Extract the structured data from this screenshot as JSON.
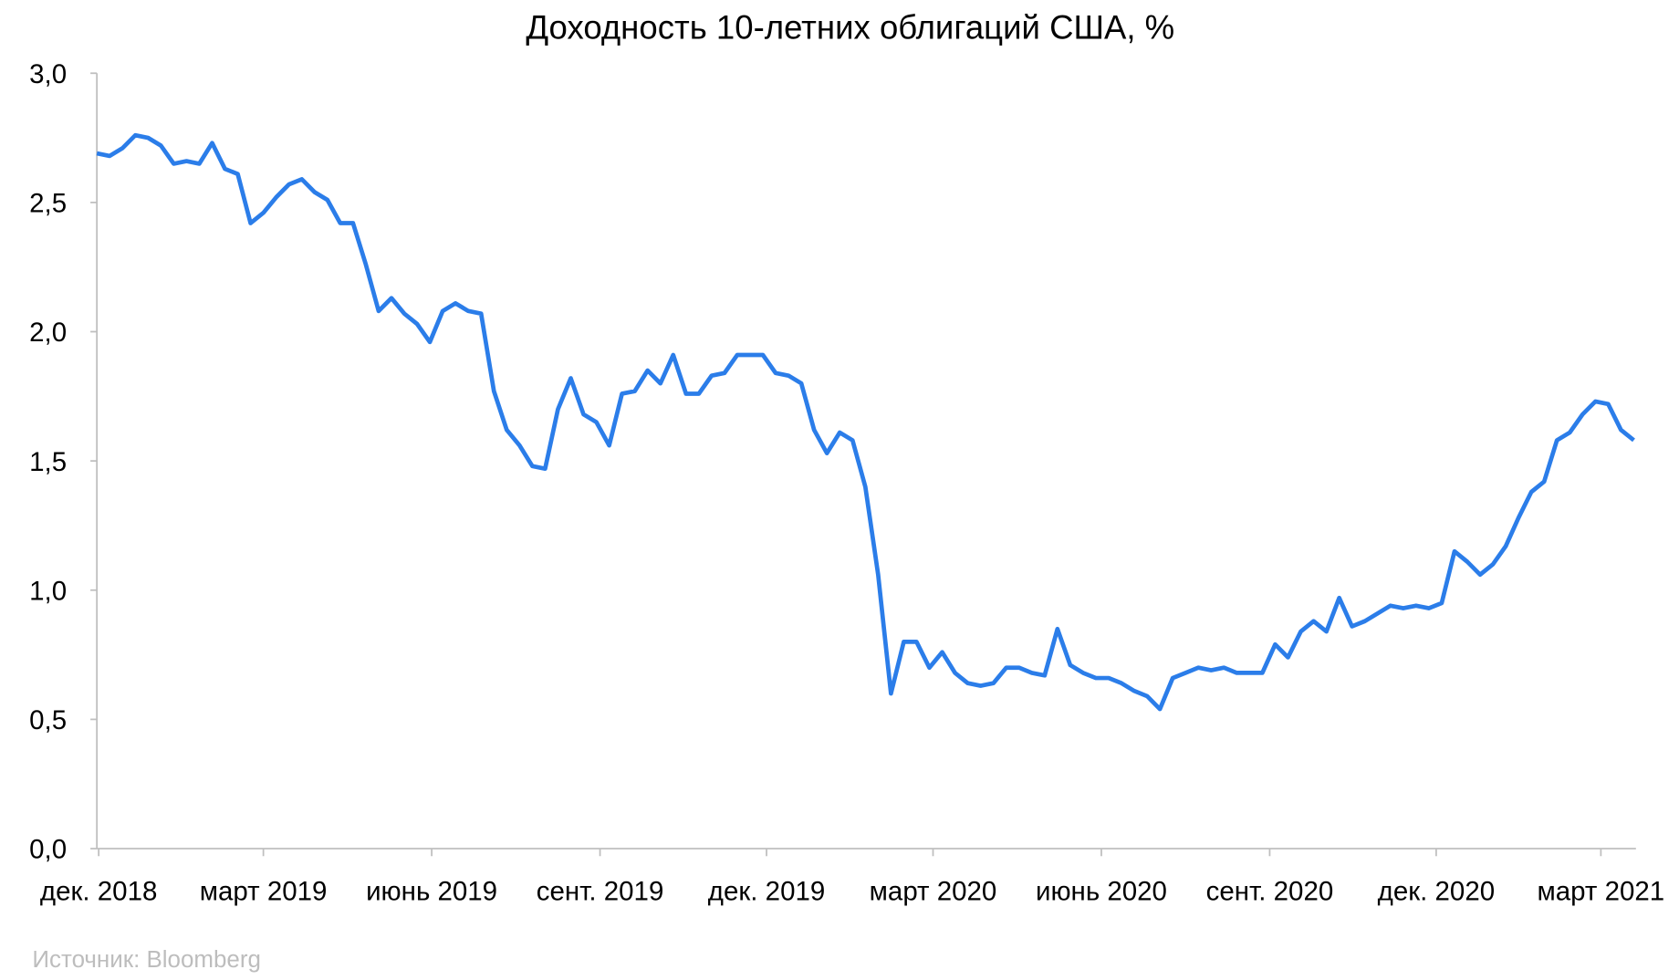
{
  "chart_data": {
    "type": "line",
    "title": "Доходность 10-летних облигаций США, %",
    "xlabel": "",
    "ylabel": "",
    "ylim": [
      0,
      3
    ],
    "yticks": [
      "0,0",
      "0,5",
      "1,0",
      "1,5",
      "2,0",
      "2,5",
      "3,0"
    ],
    "ytick_values": [
      0,
      0.5,
      1,
      1.5,
      2,
      2.5,
      3
    ],
    "xticks": [
      {
        "date": "2018-12-01",
        "label": "дек. 2018"
      },
      {
        "date": "2019-03-01",
        "label": "март 2019"
      },
      {
        "date": "2019-06-01",
        "label": "июнь 2019"
      },
      {
        "date": "2019-09-01",
        "label": "сент. 2019"
      },
      {
        "date": "2019-12-01",
        "label": "дек. 2019"
      },
      {
        "date": "2020-03-01",
        "label": "март 2020"
      },
      {
        "date": "2020-06-01",
        "label": "июнь 2020"
      },
      {
        "date": "2020-09-01",
        "label": "сент. 2020"
      },
      {
        "date": "2020-12-01",
        "label": "дек. 2020"
      },
      {
        "date": "2021-03-01",
        "label": "март 2021"
      }
    ],
    "grid": false,
    "legend": "none",
    "line_color": "#2b7de9",
    "x": [
      "2018-11-30",
      "2018-12-07",
      "2018-12-14",
      "2018-12-21",
      "2018-12-28",
      "2019-01-04",
      "2019-01-11",
      "2019-01-18",
      "2019-01-25",
      "2019-02-01",
      "2019-02-08",
      "2019-02-15",
      "2019-02-22",
      "2019-03-01",
      "2019-03-08",
      "2019-03-15",
      "2019-03-22",
      "2019-03-29",
      "2019-04-05",
      "2019-04-12",
      "2019-04-19",
      "2019-04-26",
      "2019-05-03",
      "2019-05-10",
      "2019-05-17",
      "2019-05-24",
      "2019-05-31",
      "2019-06-07",
      "2019-06-14",
      "2019-06-21",
      "2019-06-28",
      "2019-07-05",
      "2019-07-12",
      "2019-07-19",
      "2019-07-26",
      "2019-08-02",
      "2019-08-09",
      "2019-08-16",
      "2019-08-23",
      "2019-08-30",
      "2019-09-06",
      "2019-09-13",
      "2019-09-20",
      "2019-09-27",
      "2019-10-04",
      "2019-10-11",
      "2019-10-18",
      "2019-10-25",
      "2019-11-01",
      "2019-11-08",
      "2019-11-15",
      "2019-11-22",
      "2019-11-29",
      "2019-12-06",
      "2019-12-13",
      "2019-12-20",
      "2019-12-27",
      "2020-01-03",
      "2020-01-10",
      "2020-01-17",
      "2020-01-24",
      "2020-01-31",
      "2020-02-07",
      "2020-02-14",
      "2020-02-21",
      "2020-02-28",
      "2020-03-06",
      "2020-03-13",
      "2020-03-20",
      "2020-03-27",
      "2020-04-03",
      "2020-04-10",
      "2020-04-17",
      "2020-04-24",
      "2020-05-01",
      "2020-05-08",
      "2020-05-15",
      "2020-05-22",
      "2020-05-29",
      "2020-06-05",
      "2020-06-12",
      "2020-06-19",
      "2020-06-26",
      "2020-07-03",
      "2020-07-10",
      "2020-07-17",
      "2020-07-24",
      "2020-07-31",
      "2020-08-07",
      "2020-08-14",
      "2020-08-21",
      "2020-08-28",
      "2020-09-04",
      "2020-09-11",
      "2020-09-18",
      "2020-09-25",
      "2020-10-02",
      "2020-10-09",
      "2020-10-16",
      "2020-10-23",
      "2020-10-30",
      "2020-11-06",
      "2020-11-13",
      "2020-11-20",
      "2020-11-27",
      "2020-12-04",
      "2020-12-11",
      "2020-12-18",
      "2020-12-25",
      "2021-01-01",
      "2021-01-08",
      "2021-01-15",
      "2021-01-22",
      "2021-01-29",
      "2021-02-05",
      "2021-02-12",
      "2021-02-19",
      "2021-02-26",
      "2021-03-05",
      "2021-03-12",
      "2021-03-19"
    ],
    "values": [
      2.69,
      2.68,
      2.71,
      2.76,
      2.75,
      2.72,
      2.65,
      2.66,
      2.65,
      2.73,
      2.63,
      2.61,
      2.42,
      2.46,
      2.52,
      2.57,
      2.59,
      2.54,
      2.51,
      2.42,
      2.42,
      2.26,
      2.08,
      2.13,
      2.07,
      2.03,
      1.96,
      2.08,
      2.11,
      2.08,
      2.07,
      1.77,
      1.62,
      1.56,
      1.48,
      1.47,
      1.7,
      1.82,
      1.68,
      1.65,
      1.56,
      1.76,
      1.77,
      1.85,
      1.8,
      1.91,
      1.76,
      1.76,
      1.83,
      1.84,
      1.91,
      1.91,
      1.91,
      1.84,
      1.83,
      1.8,
      1.62,
      1.53,
      1.61,
      1.58,
      1.4,
      1.06,
      0.6,
      0.8,
      0.8,
      0.7,
      0.76,
      0.68,
      0.64,
      0.63,
      0.64,
      0.7,
      0.7,
      0.68,
      0.67,
      0.85,
      0.71,
      0.68,
      0.66,
      0.66,
      0.64,
      0.61,
      0.59,
      0.54,
      0.66,
      0.68,
      0.7,
      0.69,
      0.7,
      0.68,
      0.68,
      0.68,
      0.79,
      0.74,
      0.84,
      0.88,
      0.84,
      0.97,
      0.86,
      0.88,
      0.91,
      0.94,
      0.93,
      0.94,
      0.93,
      0.95,
      1.15,
      1.11,
      1.06,
      1.1,
      1.17,
      1.28,
      1.38,
      1.42,
      1.58,
      1.61,
      1.68,
      1.73,
      1.72,
      1.62,
      1.58
    ]
  },
  "source": "Источник: Bloomberg"
}
